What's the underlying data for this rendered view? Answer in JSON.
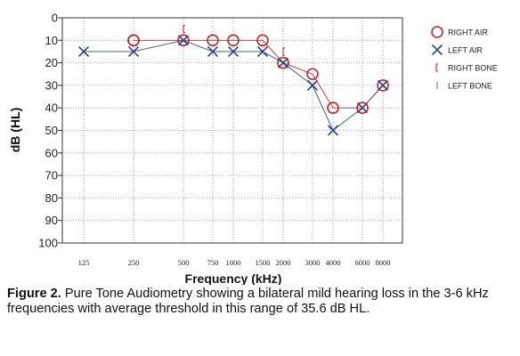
{
  "chart_data": {
    "type": "line",
    "xlabel": "Frequency (kHz)",
    "ylabel": "dB (HL)",
    "ylim": [
      0,
      100
    ],
    "y_inverted": true,
    "y_ticks": [
      "0",
      "10",
      "20",
      "30",
      "40",
      "50",
      "60",
      "70",
      "80",
      "90",
      "100"
    ],
    "x_tick_labels": [
      "125",
      "250",
      "500",
      "750",
      "1000",
      "1500",
      "2000",
      "3000",
      "4000",
      "6000",
      "8000"
    ],
    "x_hz": [
      125,
      250,
      500,
      750,
      1000,
      1500,
      2000,
      3000,
      4000,
      6000,
      8000
    ],
    "grid": "dotted",
    "legend_placement": "right",
    "series": [
      {
        "name": "RIGHT AIR",
        "marker": "circle",
        "color": "#cc2222",
        "line_color": "#b03030",
        "x": [
          250,
          250,
          500,
          750,
          1000,
          1500,
          2000,
          3000,
          4000,
          6000,
          8000
        ],
        "y": [
          10,
          10,
          10,
          10,
          10,
          10,
          20,
          25,
          40,
          40,
          30
        ]
      },
      {
        "name": "LEFT AIR",
        "marker": "x",
        "color": "#2e4a86",
        "line_color": "#2e4a86",
        "x": [
          125,
          250,
          500,
          750,
          1000,
          1500,
          2000,
          3000,
          4000,
          6000,
          8000
        ],
        "y": [
          15,
          15,
          10,
          15,
          15,
          15,
          20,
          30,
          50,
          40,
          30
        ]
      },
      {
        "name": "RIGHT BONE",
        "marker": "bracket",
        "color": "#cc2222",
        "x": [
          500,
          2000
        ],
        "y": [
          5,
          15
        ]
      },
      {
        "name": "LEFT BONE",
        "marker": "pipe",
        "color": "#777777",
        "x": [],
        "y": []
      }
    ]
  },
  "caption": {
    "lead": "Figure 2.",
    "text": " Pure Tone Audiometry showing a bilateral mild hearing loss in the 3-6 kHz frequencies with average threshold in this range of 35.6 dB HL."
  }
}
